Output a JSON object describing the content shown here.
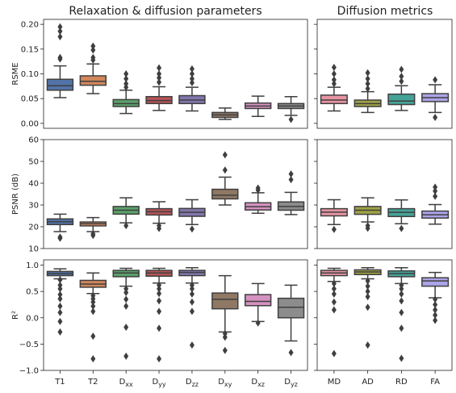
{
  "figure": {
    "left_title": "Relaxation & diffusion parameters",
    "right_title": "Diffusion metrics"
  },
  "chart_data": [
    {
      "type": "box",
      "panel": "rsme-left",
      "title": "Relaxation & diffusion parameters",
      "ylabel": "RSME",
      "ylim": [
        -0.01,
        0.21
      ],
      "yticks": [
        0.0,
        0.05,
        0.1,
        0.15,
        0.2
      ],
      "ytick_labels": [
        "0.00",
        "0.05",
        "0.10",
        "0.15",
        "0.20"
      ],
      "categories": [
        "T1",
        "T2",
        "Dxx",
        "Dyy",
        "Dzz",
        "Dxy",
        "Dxz",
        "Dyz"
      ],
      "boxes": [
        {
          "name": "T1",
          "color": "#4c72b0",
          "whislo": 0.052,
          "q1": 0.067,
          "med": 0.076,
          "q3": 0.089,
          "whishi": 0.116,
          "fliers": [
            0.13,
            0.133,
            0.175,
            0.186,
            0.195
          ]
        },
        {
          "name": "T2",
          "color": "#dd8452",
          "whislo": 0.06,
          "q1": 0.077,
          "med": 0.085,
          "q3": 0.096,
          "whishi": 0.12,
          "fliers": [
            0.128,
            0.133,
            0.148,
            0.156
          ]
        },
        {
          "name": "Dxx",
          "color": "#55a868",
          "whislo": 0.02,
          "q1": 0.034,
          "med": 0.04,
          "q3": 0.048,
          "whishi": 0.067,
          "fliers": [
            0.073,
            0.08,
            0.09,
            0.1
          ]
        },
        {
          "name": "Dyy",
          "color": "#c44e52",
          "whislo": 0.026,
          "q1": 0.04,
          "med": 0.046,
          "q3": 0.054,
          "whishi": 0.074,
          "fliers": [
            0.083,
            0.092,
            0.1,
            0.112
          ]
        },
        {
          "name": "Dzz",
          "color": "#8172b3",
          "whislo": 0.025,
          "q1": 0.04,
          "med": 0.047,
          "q3": 0.056,
          "whishi": 0.073,
          "fliers": [
            0.082,
            0.09,
            0.1,
            0.11
          ]
        },
        {
          "name": "Dxy",
          "color": "#937860",
          "whislo": 0.008,
          "q1": 0.012,
          "med": 0.017,
          "q3": 0.022,
          "whishi": 0.031,
          "fliers": []
        },
        {
          "name": "Dxz",
          "color": "#da8bc3",
          "whislo": 0.014,
          "q1": 0.03,
          "med": 0.035,
          "q3": 0.041,
          "whishi": 0.055,
          "fliers": []
        },
        {
          "name": "Dyz",
          "color": "#8c8c8c",
          "whislo": 0.016,
          "q1": 0.03,
          "med": 0.035,
          "q3": 0.04,
          "whishi": 0.054,
          "fliers": [
            0.008
          ]
        }
      ]
    },
    {
      "type": "box",
      "panel": "rsme-right",
      "title": "Diffusion metrics",
      "ylim": [
        -0.01,
        0.21
      ],
      "yticks": [
        0.0,
        0.05,
        0.1,
        0.15,
        0.2
      ],
      "categories": [
        "MD",
        "AD",
        "RD",
        "FA"
      ],
      "boxes": [
        {
          "name": "MD",
          "color": "#f08ea0",
          "whislo": 0.025,
          "q1": 0.04,
          "med": 0.047,
          "q3": 0.057,
          "whishi": 0.073,
          "fliers": [
            0.08,
            0.088,
            0.1,
            0.113
          ]
        },
        {
          "name": "AD",
          "color": "#a5a83a",
          "whislo": 0.022,
          "q1": 0.034,
          "med": 0.04,
          "q3": 0.047,
          "whishi": 0.064,
          "fliers": [
            0.07,
            0.08,
            0.09,
            0.102
          ]
        },
        {
          "name": "RD",
          "color": "#3ba99c",
          "whislo": 0.026,
          "q1": 0.038,
          "med": 0.045,
          "q3": 0.059,
          "whishi": 0.076,
          "fliers": [
            0.085,
            0.095,
            0.109
          ]
        },
        {
          "name": "FA",
          "color": "#a99ff0",
          "whislo": 0.022,
          "q1": 0.044,
          "med": 0.052,
          "q3": 0.06,
          "whishi": 0.078,
          "fliers": [
            0.088,
            0.012
          ]
        }
      ]
    },
    {
      "type": "box",
      "panel": "psnr-left",
      "ylabel": "PSNR (dB)",
      "ylim": [
        10,
        60
      ],
      "yticks": [
        10,
        20,
        30,
        40,
        50,
        60
      ],
      "ytick_labels": [
        "10",
        "20",
        "30",
        "40",
        "50",
        "60"
      ],
      "categories": [
        "T1",
        "T2",
        "Dxx",
        "Dyy",
        "Dzz",
        "Dxy",
        "Dxz",
        "Dyz"
      ],
      "boxes": [
        {
          "name": "T1",
          "color": "#4c72b0",
          "whislo": 17.8,
          "q1": 21.0,
          "med": 22.3,
          "q3": 23.6,
          "whishi": 25.8,
          "fliers": [
            15.3,
            14.7
          ]
        },
        {
          "name": "T2",
          "color": "#dd8452",
          "whislo": 17.8,
          "q1": 20.4,
          "med": 21.4,
          "q3": 22.2,
          "whishi": 24.2,
          "fliers": [
            16.8,
            16.0
          ]
        },
        {
          "name": "Dxx",
          "color": "#55a868",
          "whislo": 21.8,
          "q1": 25.8,
          "med": 27.6,
          "q3": 29.3,
          "whishi": 33.3,
          "fliers": [
            20.5
          ]
        },
        {
          "name": "Dyy",
          "color": "#c44e52",
          "whislo": 21.6,
          "q1": 25.4,
          "med": 26.9,
          "q3": 28.3,
          "whishi": 31.5,
          "fliers": [
            20.5,
            19.2
          ]
        },
        {
          "name": "Dzz",
          "color": "#8172b3",
          "whislo": 21.0,
          "q1": 24.8,
          "med": 26.6,
          "q3": 28.4,
          "whishi": 32.4,
          "fliers": [
            19.0
          ]
        },
        {
          "name": "Dxy",
          "color": "#937860",
          "whislo": 30.0,
          "q1": 32.8,
          "med": 34.5,
          "q3": 37.2,
          "whishi": 42.8,
          "fliers": [
            46.0,
            53.0
          ]
        },
        {
          "name": "Dxz",
          "color": "#da8bc3",
          "whislo": 26.2,
          "q1": 27.7,
          "med": 29.2,
          "q3": 31.0,
          "whishi": 35.6,
          "fliers": [
            36.8,
            37.8
          ]
        },
        {
          "name": "Dyz",
          "color": "#8c8c8c",
          "whislo": 25.6,
          "q1": 27.6,
          "med": 29.3,
          "q3": 31.4,
          "whishi": 35.8,
          "fliers": [
            41.6,
            44.2
          ]
        }
      ]
    },
    {
      "type": "box",
      "panel": "psnr-right",
      "ylim": [
        10,
        60
      ],
      "yticks": [
        10,
        20,
        30,
        40,
        50,
        60
      ],
      "categories": [
        "MD",
        "AD",
        "RD",
        "FA"
      ],
      "boxes": [
        {
          "name": "MD",
          "color": "#f08ea0",
          "whislo": 21.0,
          "q1": 25.0,
          "med": 26.7,
          "q3": 28.3,
          "whishi": 32.4,
          "fliers": [
            18.8
          ]
        },
        {
          "name": "AD",
          "color": "#a5a83a",
          "whislo": 22.2,
          "q1": 25.7,
          "med": 27.6,
          "q3": 29.3,
          "whishi": 33.3,
          "fliers": [
            20.5,
            19.3
          ]
        },
        {
          "name": "RD",
          "color": "#3ba99c",
          "whislo": 21.4,
          "q1": 24.7,
          "med": 26.6,
          "q3": 28.3,
          "whishi": 32.3,
          "fliers": [
            19.2
          ]
        },
        {
          "name": "FA",
          "color": "#a99ff0",
          "whislo": 21.2,
          "q1": 24.0,
          "med": 25.5,
          "q3": 27.2,
          "whishi": 30.2,
          "fliers": [
            34.0,
            36.4,
            38.2
          ]
        }
      ]
    },
    {
      "type": "box",
      "panel": "r2-left",
      "ylabel": "R²",
      "ylim": [
        -1.0,
        1.1
      ],
      "yticks": [
        -1.0,
        -0.5,
        0.0,
        0.5,
        1.0
      ],
      "ytick_labels": [
        "−1.0",
        "−0.5",
        "0.0",
        "0.5",
        "1.0"
      ],
      "categories": [
        "T1",
        "T2",
        "Dxx",
        "Dyy",
        "Dzz",
        "Dxy",
        "Dxz",
        "Dyz"
      ],
      "boxes": [
        {
          "name": "T1",
          "color": "#4c72b0",
          "whislo": 0.74,
          "q1": 0.8,
          "med": 0.84,
          "q3": 0.88,
          "whishi": 0.93,
          "fliers": [
            0.72,
            0.62,
            0.55,
            0.44,
            0.36,
            0.22,
            0.1,
            -0.07,
            -0.27
          ]
        },
        {
          "name": "T2",
          "color": "#dd8452",
          "whislo": 0.46,
          "q1": 0.58,
          "med": 0.64,
          "q3": 0.71,
          "whishi": 0.85,
          "fliers": [
            0.42,
            0.36,
            0.3,
            0.22,
            0.12,
            -0.35,
            -0.78
          ]
        },
        {
          "name": "Dxx",
          "color": "#55a868",
          "whislo": 0.6,
          "q1": 0.78,
          "med": 0.85,
          "q3": 0.9,
          "whishi": 0.94,
          "fliers": [
            0.55,
            0.48,
            0.35,
            0.22,
            -0.18,
            -0.73
          ]
        },
        {
          "name": "Dyy",
          "color": "#c44e52",
          "whislo": 0.66,
          "q1": 0.79,
          "med": 0.85,
          "q3": 0.9,
          "whishi": 0.94,
          "fliers": [
            0.62,
            0.55,
            0.46,
            0.32,
            0.12,
            -0.2,
            -0.78
          ]
        },
        {
          "name": "Dzz",
          "color": "#8172b3",
          "whislo": 0.66,
          "q1": 0.8,
          "med": 0.86,
          "q3": 0.9,
          "whishi": 0.95,
          "fliers": [
            0.62,
            0.55,
            0.45,
            0.3,
            0.12,
            -0.52
          ]
        },
        {
          "name": "Dxy",
          "color": "#937860",
          "whislo": -0.27,
          "q1": 0.17,
          "med": 0.35,
          "q3": 0.47,
          "whishi": 0.8,
          "fliers": [
            -0.3,
            -0.37,
            -0.62
          ]
        },
        {
          "name": "Dxz",
          "color": "#da8bc3",
          "whislo": -0.07,
          "q1": 0.23,
          "med": 0.31,
          "q3": 0.44,
          "whishi": 0.65,
          "fliers": [
            -0.1
          ]
        },
        {
          "name": "Dyz",
          "color": "#8c8c8c",
          "whislo": -0.44,
          "q1": 0.0,
          "med": 0.2,
          "q3": 0.37,
          "whishi": 0.62,
          "fliers": [
            -0.66
          ]
        }
      ]
    },
    {
      "type": "box",
      "panel": "r2-right",
      "ylim": [
        -1.0,
        1.1
      ],
      "yticks": [
        -1.0,
        -0.5,
        0.0,
        0.5,
        1.0
      ],
      "categories": [
        "MD",
        "AD",
        "RD",
        "FA"
      ],
      "tick_labels": [
        "MD",
        "AD",
        "RD",
        "FA"
      ],
      "boxes": [
        {
          "name": "MD",
          "color": "#f08ea0",
          "whislo": 0.69,
          "q1": 0.8,
          "med": 0.85,
          "q3": 0.9,
          "whishi": 0.94,
          "fliers": [
            0.65,
            0.55,
            0.45,
            0.3,
            0.15,
            -0.68
          ]
        },
        {
          "name": "AD",
          "color": "#a5a83a",
          "whislo": 0.74,
          "q1": 0.82,
          "med": 0.87,
          "q3": 0.91,
          "whishi": 0.95,
          "fliers": [
            0.7,
            0.6,
            0.5,
            0.4,
            0.2,
            -0.52
          ]
        },
        {
          "name": "RD",
          "color": "#3ba99c",
          "whislo": 0.65,
          "q1": 0.78,
          "med": 0.84,
          "q3": 0.89,
          "whishi": 0.95,
          "fliers": [
            0.62,
            0.55,
            0.45,
            0.32,
            0.1,
            -0.2,
            -0.77
          ]
        },
        {
          "name": "FA",
          "color": "#a99ff0",
          "whislo": 0.38,
          "q1": 0.6,
          "med": 0.7,
          "q3": 0.76,
          "whishi": 0.86,
          "fliers": [
            0.35,
            0.25,
            0.15,
            0.05,
            -0.05
          ]
        }
      ]
    }
  ]
}
